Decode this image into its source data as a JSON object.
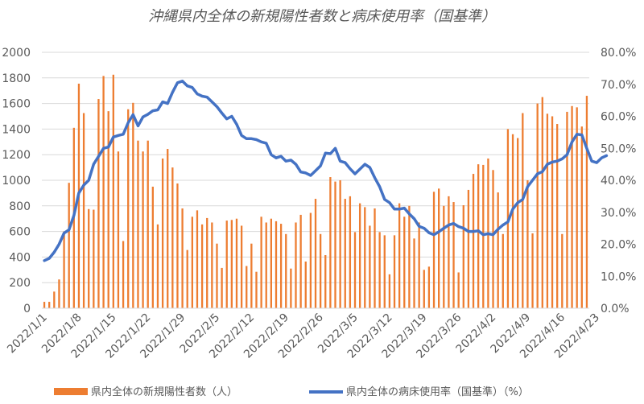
{
  "chart_data": {
    "type": "bar+line",
    "title": "沖縄県内全体の新規陽性者数と病床使用率（国基準）",
    "colors": {
      "bar": "#ED7D31",
      "line": "#4472C4",
      "grid": "#D9D9D9",
      "text": "#595959"
    },
    "x_start": "2022-01-01",
    "x_ticks": [
      "2022/1/1",
      "2022/1/8",
      "2022/1/15",
      "2022/1/22",
      "2022/1/29",
      "2022/2/5",
      "2022/2/12",
      "2022/2/19",
      "2022/2/26",
      "2022/3/5",
      "2022/3/12",
      "2022/3/19",
      "2022/3/26",
      "2022/4/2",
      "2022/4/9",
      "2022/4/16",
      "2022/4/23"
    ],
    "y_left": {
      "min": 0,
      "max": 2000,
      "ticks": [
        "0",
        "200",
        "400",
        "600",
        "800",
        "1000",
        "1200",
        "1400",
        "1600",
        "1800",
        "2000"
      ]
    },
    "y_right": {
      "min": 0,
      "max": 80,
      "ticks": [
        "0.0%",
        "10.0%",
        "20.0%",
        "30.0%",
        "40.0%",
        "50.0%",
        "60.0%",
        "70.0%",
        "80.0%"
      ]
    },
    "series": [
      {
        "name": "県内全体の新規陽性者数（人）",
        "kind": "bar",
        "axis": "left",
        "values": [
          50,
          50,
          130,
          225,
          600,
          980,
          1410,
          1755,
          1525,
          775,
          770,
          1635,
          1815,
          1540,
          1825,
          1225,
          525,
          1555,
          1605,
          1310,
          1225,
          1310,
          950,
          655,
          1170,
          1245,
          1100,
          975,
          780,
          455,
          715,
          765,
          655,
          705,
          670,
          505,
          315,
          685,
          690,
          700,
          645,
          330,
          505,
          285,
          715,
          670,
          700,
          680,
          660,
          580,
          310,
          670,
          730,
          365,
          745,
          855,
          580,
          415,
          1025,
          990,
          1000,
          855,
          875,
          595,
          820,
          790,
          645,
          780,
          595,
          570,
          265,
          570,
          820,
          715,
          800,
          545,
          670,
          300,
          325,
          910,
          935,
          800,
          875,
          830,
          280,
          805,
          925,
          1050,
          1125,
          1120,
          1170,
          1080,
          905,
          580,
          1400,
          1360,
          1330,
          1525,
          1000,
          585,
          1600,
          1650,
          1520,
          1500,
          1440,
          580,
          1535,
          1580,
          1570,
          1420,
          1660
        ]
      },
      {
        "name": "県内全体の病床使用率（国基準）（%）",
        "kind": "line",
        "axis": "right",
        "values": [
          14.9,
          15.6,
          17.5,
          20,
          23.5,
          24.5,
          29,
          36,
          38.5,
          40,
          45,
          47.5,
          50,
          50.4,
          53.5,
          54,
          54.4,
          58,
          60.5,
          57,
          59.8,
          60.6,
          61.7,
          62,
          64.5,
          64,
          67.5,
          70.5,
          71,
          69.5,
          69,
          67,
          66.3,
          66,
          64.5,
          63,
          61,
          59.2,
          60,
          57.5,
          54,
          53,
          53,
          52.7,
          52,
          51.6,
          48,
          47,
          47.5,
          46,
          46.3,
          45,
          42.6,
          42.3,
          41.5,
          43,
          44.5,
          48.5,
          48.3,
          50,
          46,
          45.5,
          43.6,
          42,
          43.5,
          45,
          44,
          40.8,
          38,
          34,
          33,
          31,
          31,
          31.3,
          29.5,
          28,
          25.6,
          25,
          23.6,
          23,
          23.9,
          25,
          26,
          26.5,
          25.5,
          25,
          24,
          24,
          24.2,
          23,
          23.3,
          23,
          24.7,
          26,
          27,
          31,
          33,
          34,
          38,
          40,
          42,
          42.7,
          45,
          45.7,
          46,
          46.7,
          48,
          52,
          54.4,
          54.2,
          50,
          46,
          45.5,
          47,
          47.7
        ]
      }
    ],
    "legend_position": "bottom"
  }
}
